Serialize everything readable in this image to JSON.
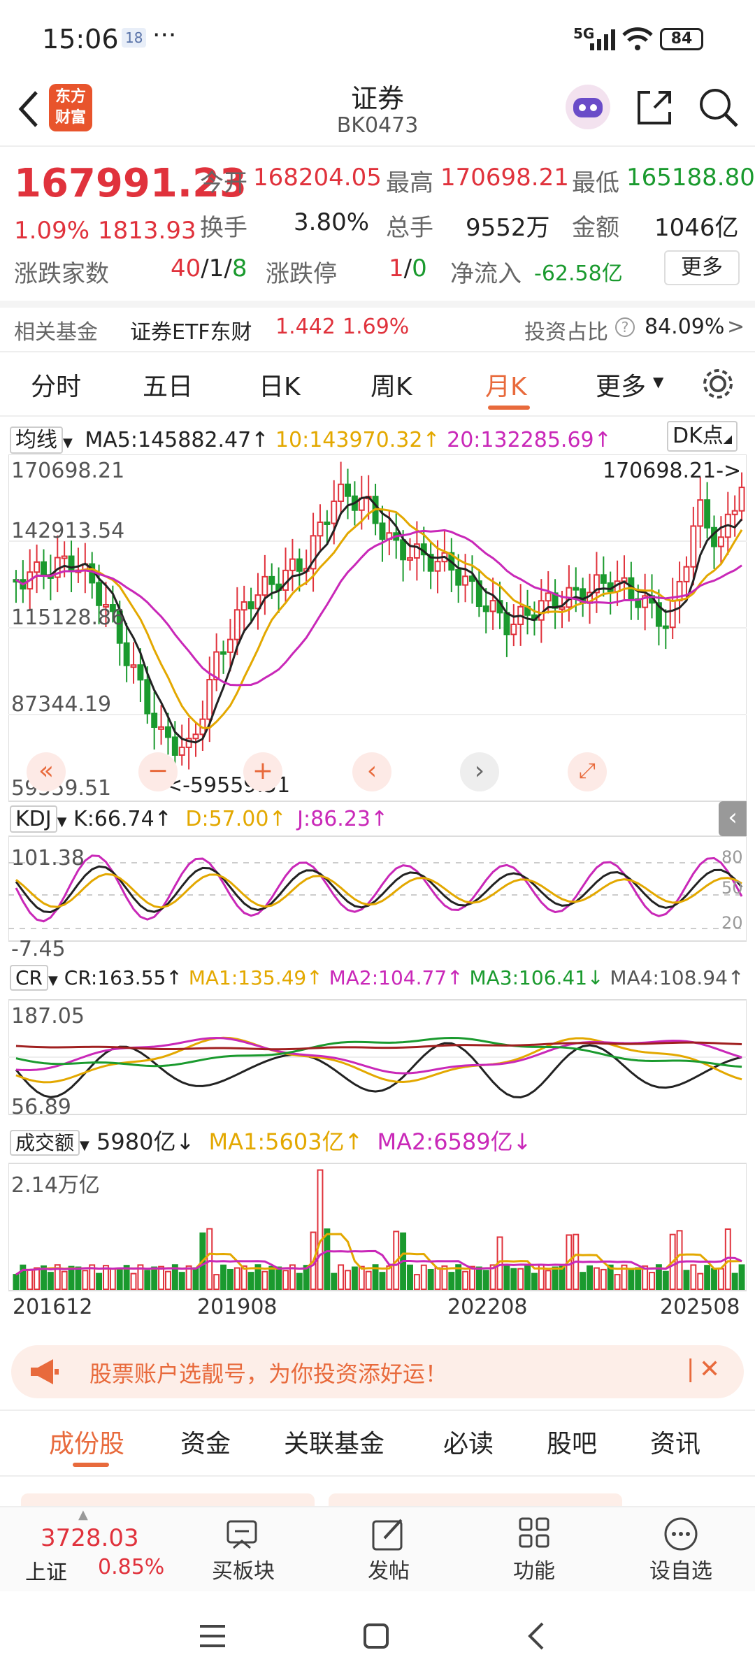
{
  "status": {
    "time": "15:06",
    "badge": "18",
    "dots": "···",
    "signal": "5G",
    "battery": "84"
  },
  "header": {
    "title": "证券",
    "code": "BK0473",
    "logo_line1": "东方",
    "logo_line2": "财富"
  },
  "quote": {
    "price": "167991.23",
    "change_pct": "1.09%",
    "change": "1813.93",
    "open_label": "今开",
    "open": "168204.05",
    "high_label": "最高",
    "high": "170698.21",
    "low_label": "最低",
    "low": "165188.80",
    "turnover_label": "换手",
    "turnover": "3.80%",
    "volume_label": "总手",
    "volume": "9552万",
    "amount_label": "金额",
    "amount": "1046亿",
    "updown_label": "涨跌家数",
    "up": "40",
    "flat": "1",
    "down": "8",
    "sep": "/",
    "limit_label": "涨跌停",
    "limit_up": "1",
    "limit_down": "0",
    "inflow_label": "净流入",
    "inflow": "-62.58亿",
    "more": "更多"
  },
  "fund": {
    "label": "相关基金",
    "name": "证券ETF东财",
    "price": "1.442",
    "pct": "1.69%",
    "ratio_label": "投资占比",
    "ratio": "84.09%",
    "arrow": ">",
    "help": "?"
  },
  "tabs": [
    "分时",
    "五日",
    "日K",
    "周K",
    "月K",
    "更多"
  ],
  "tab_active": 4,
  "ma_row": {
    "selector": "均线",
    "ma5": "MA5:145882.47↑",
    "ma10": "10:143970.32↑",
    "ma20": "20:132285.69↑",
    "dk": "DK点"
  },
  "kchart": {
    "y_top": "170698.21",
    "y2": "142913.54",
    "y3": "115128.86",
    "y4": "87344.19",
    "y_bottom": "59559.51",
    "max_marker": "170698.21->",
    "min_marker": "<-59559.51"
  },
  "kdj": {
    "selector": "KDJ",
    "k": "K:66.74↑",
    "d": "D:57.00↑",
    "j": "J:86.23↑",
    "y_top": "101.38",
    "y_bottom": "-7.45",
    "r80": "80",
    "r50": "50",
    "r20": "20"
  },
  "cr": {
    "selector": "CR",
    "cr": "CR:163.55↑",
    "ma1": "MA1:135.49↑",
    "ma2": "MA2:104.77↑",
    "ma3": "MA3:106.41↓",
    "ma4": "MA4:108.94↑",
    "y_top": "187.05",
    "y_bottom": "56.89"
  },
  "vol": {
    "selector": "成交额",
    "value": "5980亿↓",
    "ma1": "MA1:5603亿↑",
    "ma2": "MA2:6589亿↓",
    "y_top": "2.14万亿"
  },
  "x_dates": [
    "201612",
    "201908",
    "202208",
    "202508"
  ],
  "banner": {
    "text": "股票账户选靓号，为你投资添好运！",
    "divider": "|",
    "close": "✕"
  },
  "bottom_tabs": [
    "成份股",
    "资金",
    "关联基金",
    "必读",
    "股吧",
    "资讯"
  ],
  "bottom_nav": {
    "index_value": "3728.03",
    "index_name": "上证",
    "index_pct": "0.85%",
    "items": [
      "买板块",
      "发帖",
      "功能",
      "设自选"
    ]
  },
  "colors": {
    "up": "#e0323c",
    "down": "#1a9a2e",
    "accent": "#e86a3c",
    "ma10": "#e3a800",
    "ma20": "#c928b8"
  }
}
